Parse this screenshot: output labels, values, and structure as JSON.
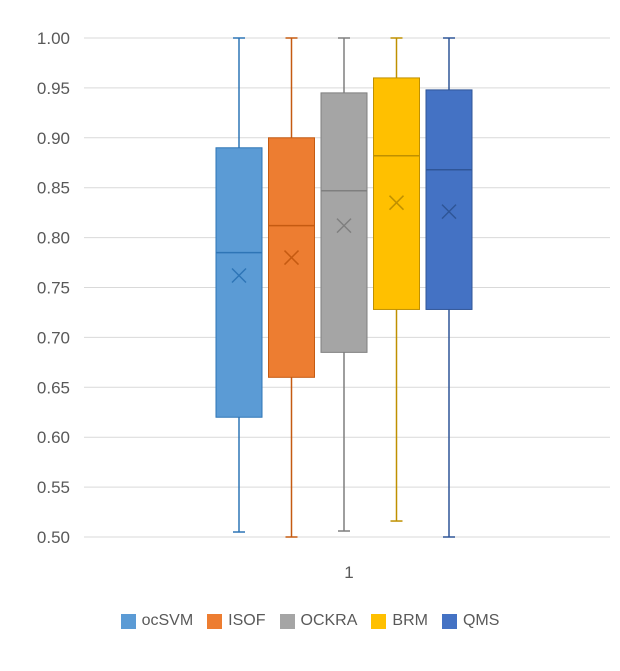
{
  "chart_data": {
    "type": "boxplot",
    "categories": [
      "1"
    ],
    "ylim": [
      0.5,
      1.0
    ],
    "y_ticks": [
      "0.50",
      "0.55",
      "0.60",
      "0.65",
      "0.70",
      "0.75",
      "0.80",
      "0.85",
      "0.90",
      "0.95",
      "1.00"
    ],
    "y_tick_values": [
      0.5,
      0.55,
      0.6,
      0.65,
      0.7,
      0.75,
      0.8,
      0.85,
      0.9,
      0.95,
      1.0
    ],
    "grid": true,
    "legend_position": "bottom",
    "series": [
      {
        "name": "ocSVM",
        "color": "#5B9BD5",
        "stroke": "#2E75B6",
        "min": 0.505,
        "q1": 0.62,
        "median": 0.785,
        "q3": 0.89,
        "max": 1.0,
        "mean": 0.762
      },
      {
        "name": "ISOF",
        "color": "#ED7D31",
        "stroke": "#C55A11",
        "min": 0.5,
        "q1": 0.66,
        "median": 0.812,
        "q3": 0.9,
        "max": 1.0,
        "mean": 0.78
      },
      {
        "name": "OCKRA",
        "color": "#A5A5A5",
        "stroke": "#7F7F7F",
        "min": 0.506,
        "q1": 0.685,
        "median": 0.847,
        "q3": 0.945,
        "max": 1.0,
        "mean": 0.812
      },
      {
        "name": "BRM",
        "color": "#FFC000",
        "stroke": "#BF9000",
        "min": 0.516,
        "q1": 0.728,
        "median": 0.882,
        "q3": 0.96,
        "max": 1.0,
        "mean": 0.835
      },
      {
        "name": "QMS",
        "color": "#4472C4",
        "stroke": "#2F5597",
        "min": 0.5,
        "q1": 0.728,
        "median": 0.868,
        "q3": 0.948,
        "max": 1.0,
        "mean": 0.826
      }
    ]
  }
}
